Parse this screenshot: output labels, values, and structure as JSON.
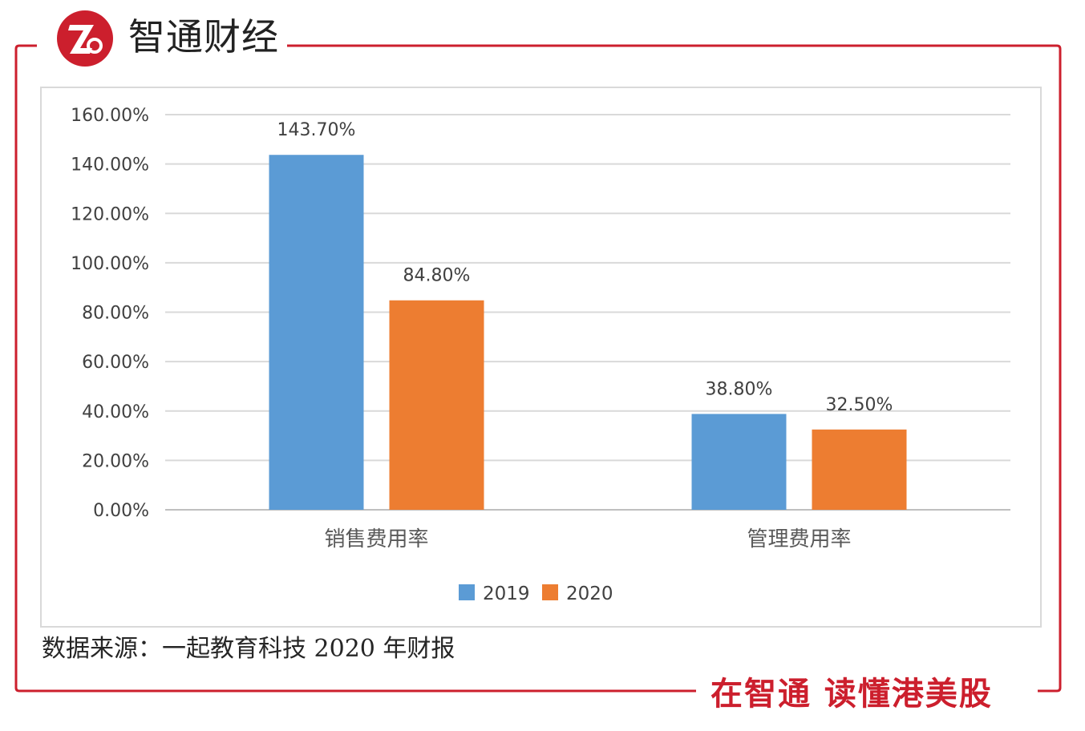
{
  "brand": {
    "name": "智通财经",
    "slogan": "在智通  读懂港美股",
    "accent_color": "#cc1f2d"
  },
  "source_note": "数据来源：一起教育科技 2020 年财报",
  "chart_data": {
    "type": "bar",
    "categories": [
      "销售费用率",
      "管理费用率"
    ],
    "series": [
      {
        "name": "2019",
        "values": [
          143.7,
          38.8
        ],
        "labels": [
          "143.70%",
          "38.80%"
        ],
        "color": "#5b9bd5"
      },
      {
        "name": "2020",
        "values": [
          84.8,
          32.5
        ],
        "labels": [
          "84.80%",
          "32.50%"
        ],
        "color": "#ed7d31"
      }
    ],
    "ylim": [
      0,
      160
    ],
    "y_ticks": [
      "0.00%",
      "20.00%",
      "40.00%",
      "60.00%",
      "80.00%",
      "100.00%",
      "120.00%",
      "140.00%",
      "160.00%"
    ],
    "grid": true,
    "legend_position": "bottom",
    "title": "",
    "xlabel": "",
    "ylabel": ""
  }
}
